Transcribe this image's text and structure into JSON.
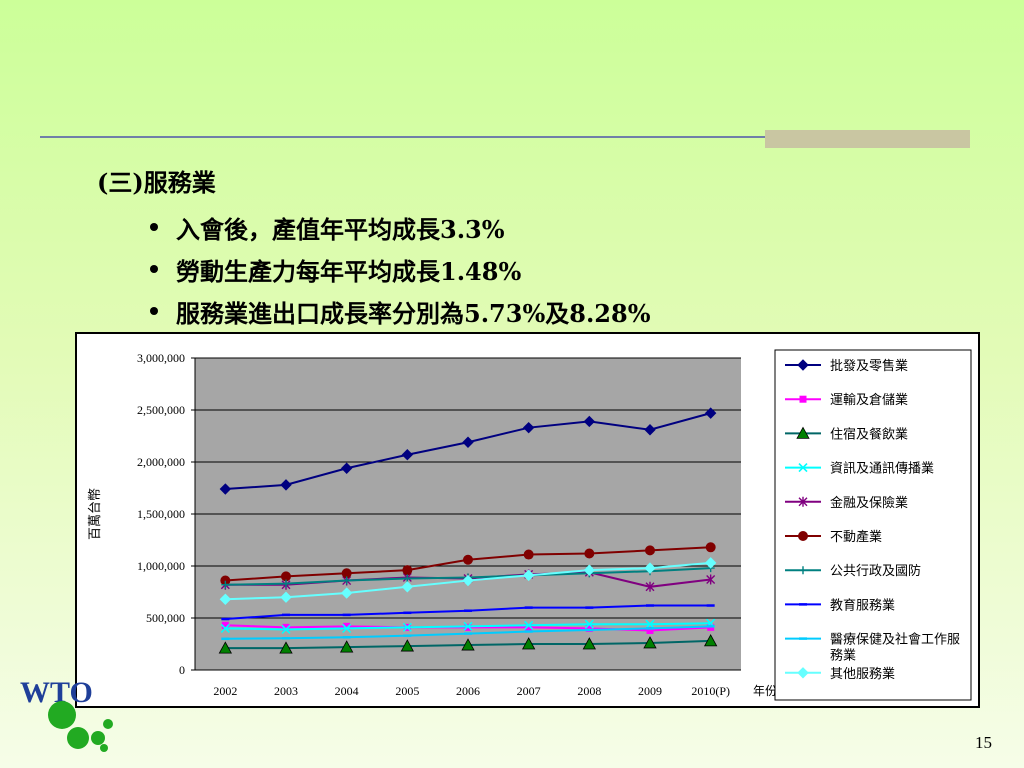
{
  "slide": {
    "heading": "(三)服務業",
    "bullets": [
      "入會後，產值年平均成長3.3%",
      "勞動生產力每年平均成長1.48%",
      "服務業進出口成長率分別為5.73%及8.28%"
    ],
    "page_number": "15",
    "logo_text": "WTO"
  },
  "colors": {
    "background": "#ccff99",
    "rule": "#6f7fa8",
    "plot_bg": "#a6a6a6"
  },
  "chart_data": {
    "type": "line",
    "ylabel": "百萬台幣",
    "xlabel": "年份",
    "categories": [
      "2002",
      "2003",
      "2004",
      "2005",
      "2006",
      "2007",
      "2008",
      "2009",
      "2010(P)"
    ],
    "ylim": [
      0,
      3000000
    ],
    "yticks": [
      "0",
      "500,000",
      "1,000,000",
      "1,500,000",
      "2,000,000",
      "2,500,000",
      "3,000,000"
    ],
    "grid": true,
    "legend_position": "right",
    "series": [
      {
        "name": "批發及零售業",
        "color": "#000080",
        "marker": "diamond",
        "values": [
          1740000,
          1780000,
          1940000,
          2070000,
          2190000,
          2330000,
          2390000,
          2310000,
          2470000
        ]
      },
      {
        "name": "運輸及倉儲業",
        "color": "#ff00ff",
        "marker": "square",
        "values": [
          430000,
          410000,
          420000,
          410000,
          410000,
          410000,
          400000,
          380000,
          410000
        ]
      },
      {
        "name": "住宿及餐飲業",
        "color": "#006666",
        "marker": "triangle",
        "values": [
          210000,
          210000,
          220000,
          230000,
          240000,
          250000,
          250000,
          260000,
          280000
        ]
      },
      {
        "name": "資訊及通訊傳播業",
        "color": "#00ffff",
        "marker": "x",
        "values": [
          400000,
          390000,
          400000,
          410000,
          420000,
          430000,
          440000,
          440000,
          450000
        ]
      },
      {
        "name": "金融及保險業",
        "color": "#800080",
        "marker": "star",
        "values": [
          820000,
          820000,
          860000,
          890000,
          880000,
          920000,
          940000,
          800000,
          870000
        ]
      },
      {
        "name": "不動產業",
        "color": "#800000",
        "marker": "circle",
        "values": [
          860000,
          900000,
          930000,
          960000,
          1060000,
          1110000,
          1120000,
          1150000,
          1180000
        ]
      },
      {
        "name": "公共行政及國防",
        "color": "#008080",
        "marker": "plus",
        "values": [
          820000,
          830000,
          860000,
          880000,
          890000,
          910000,
          930000,
          950000,
          980000
        ]
      },
      {
        "name": "教育服務業",
        "color": "#0000ff",
        "marker": "dash",
        "values": [
          490000,
          530000,
          530000,
          550000,
          570000,
          600000,
          600000,
          620000,
          620000
        ]
      },
      {
        "name": "醫療保健及社會工作服務業",
        "color": "#00ccff",
        "marker": "dash",
        "values": [
          300000,
          305000,
          315000,
          330000,
          350000,
          370000,
          385000,
          400000,
          420000
        ]
      },
      {
        "name": "其他服務業",
        "color": "#66ffff",
        "marker": "diamond",
        "values": [
          680000,
          700000,
          740000,
          800000,
          860000,
          910000,
          960000,
          980000,
          1030000
        ]
      }
    ]
  }
}
